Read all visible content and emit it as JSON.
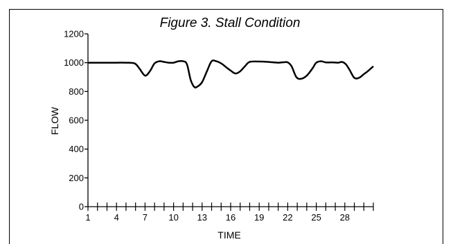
{
  "chart_data": {
    "type": "line",
    "title": "Figure 3. Stall Condition",
    "xlabel": "TIME",
    "ylabel": "FLOW",
    "xlim": [
      1,
      31
    ],
    "ylim": [
      0,
      1200
    ],
    "x_ticks": [
      1,
      4,
      7,
      10,
      13,
      16,
      19,
      22,
      25,
      28
    ],
    "y_ticks": [
      0,
      200,
      400,
      600,
      800,
      1000,
      1200
    ],
    "grid": false,
    "series": [
      {
        "x": [
          1,
          2,
          3,
          4,
          5,
          5.9,
          6.4,
          7,
          7.5,
          8,
          8.5,
          9,
          9.5,
          10,
          10.5,
          11,
          11.4,
          11.8,
          12.2,
          12.6,
          13,
          13.5,
          14,
          14.5,
          15,
          15.5,
          16,
          16.5,
          17,
          17.5,
          18,
          19,
          20,
          21,
          21.6,
          22,
          22.4,
          22.9,
          23.4,
          24,
          24.6,
          25,
          25.5,
          26,
          26.7,
          27.3,
          27.7,
          28.1,
          28.5,
          29,
          29.5,
          30,
          30.4,
          31
        ],
        "y": [
          1000,
          1000,
          1000,
          1000,
          1000,
          995,
          960,
          910,
          940,
          995,
          1010,
          1005,
          1000,
          1000,
          1010,
          1010,
          990,
          880,
          830,
          838,
          865,
          940,
          1010,
          1010,
          995,
          970,
          945,
          925,
          940,
          975,
          1005,
          1008,
          1005,
          1000,
          1003,
          1002,
          975,
          900,
          888,
          910,
          960,
          1000,
          1010,
          1002,
          1002,
          1000,
          1005,
          990,
          950,
          895,
          895,
          920,
          940,
          975
        ]
      }
    ]
  }
}
